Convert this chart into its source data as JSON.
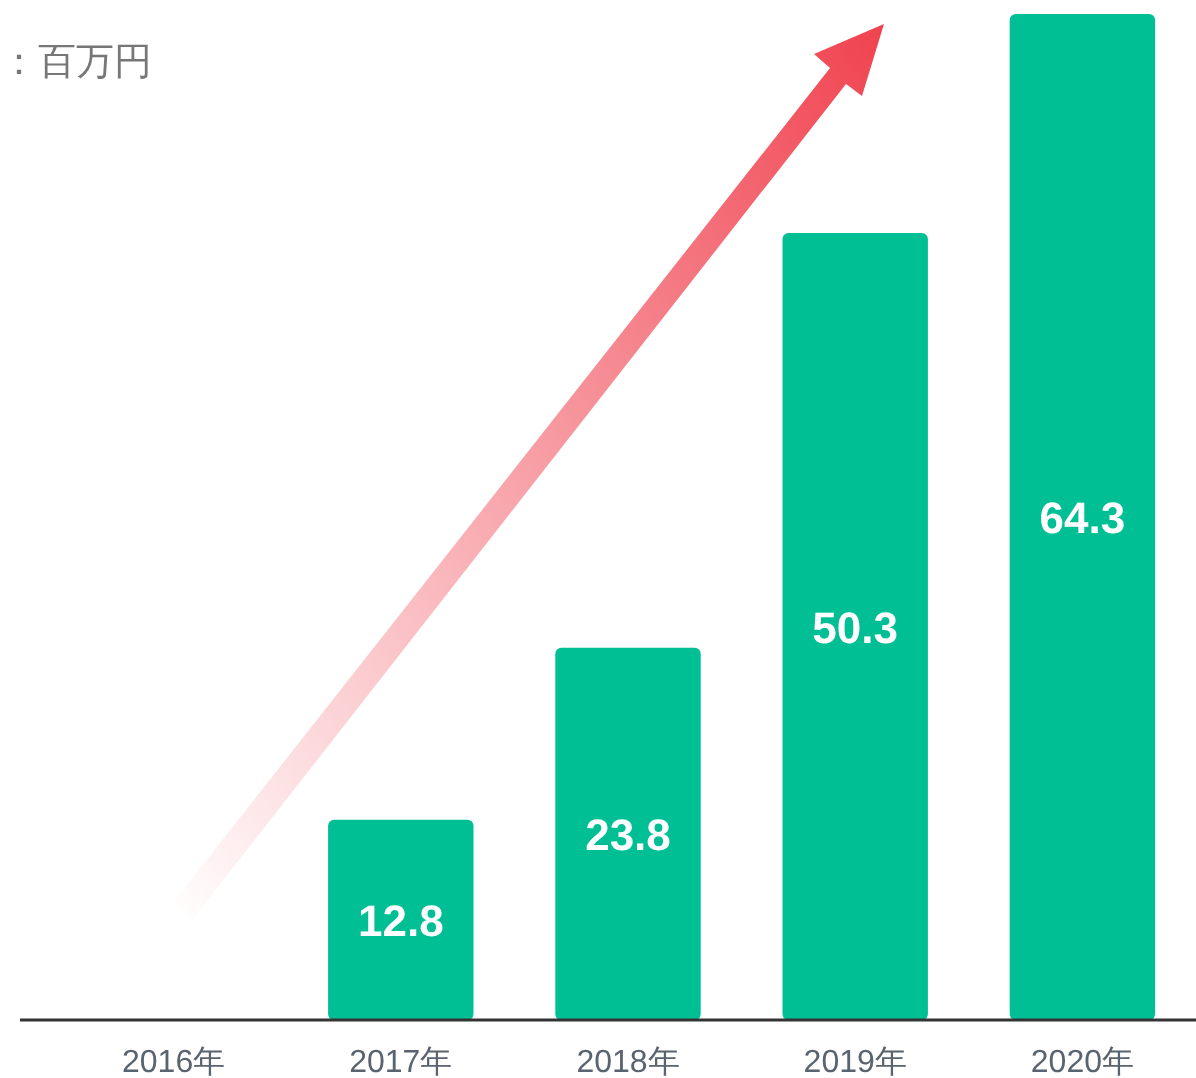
{
  "chart_data": {
    "type": "bar",
    "subtitle": "：百万円",
    "categories": [
      "2016年",
      "2017年",
      "2018年",
      "2019年",
      "2020年"
    ],
    "values": [
      null,
      12.8,
      23.8,
      50.3,
      64.3
    ],
    "color": "#00bf94",
    "data_labels": true
  }
}
